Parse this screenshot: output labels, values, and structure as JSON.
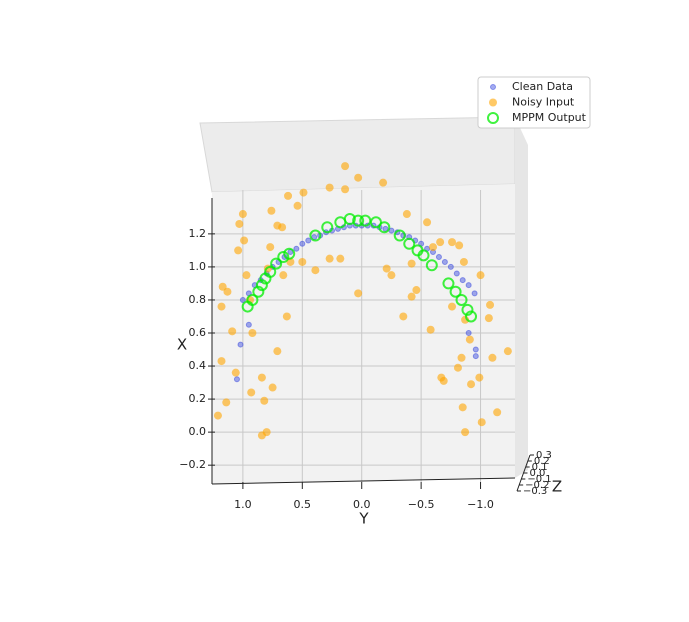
{
  "chart_data": {
    "type": "scatter",
    "xlabel": "Y",
    "ylabel": "X",
    "zlabel": "Z",
    "xlim": [
      1.26,
      -1.29
    ],
    "ylim": [
      -0.32,
      1.75
    ],
    "zlim": [
      -0.3,
      0.3
    ],
    "xticks": [
      {
        "value": 1,
        "label": "1.0"
      },
      0.5,
      {
        "value": 0,
        "label": "0.0"
      },
      {
        "value": -0.5,
        "label": "−0.5"
      },
      {
        "value": -1,
        "label": "−1.0"
      }
    ],
    "yticks": [
      {
        "value": -0.2,
        "label": "−0.2"
      },
      {
        "value": 0,
        "label": "0.0"
      },
      0.2,
      0.4,
      0.6,
      0.8,
      {
        "value": 1,
        "label": "1.0"
      },
      1.2
    ],
    "zticks": [
      {
        "value": -0.3,
        "label": "−0.3"
      },
      {
        "value": -0.2,
        "label": "−0.2"
      },
      {
        "value": -0.1,
        "label": "−0.1"
      },
      {
        "value": 0,
        "label": "0.0"
      },
      0.1,
      0.2,
      0.3
    ],
    "grid": true,
    "legend": "upper right",
    "series": [
      {
        "name": "Clean Data",
        "color": "#3344dd",
        "marker": "dot",
        "x": [
          1.0,
          0.95,
          0.9,
          0.85,
          0.8,
          0.75,
          0.7,
          0.65,
          0.6,
          0.55,
          0.5,
          0.45,
          0.4,
          0.35,
          0.3,
          0.25,
          0.2,
          0.15,
          0.1,
          0.05,
          0,
          -0.05,
          -0.1,
          -0.15,
          -0.2,
          -0.25,
          -0.3,
          -0.35,
          -0.4,
          -0.45,
          -0.5,
          -0.55,
          -0.6,
          -0.65,
          -0.7,
          -0.75,
          -0.8,
          -0.85,
          -0.9,
          -0.95,
          1.02,
          1.05,
          0.95,
          -0.96,
          -0.96,
          -0.9
        ],
        "y": [
          0.8,
          0.84,
          0.89,
          0.92,
          0.96,
          1.0,
          1.03,
          1.06,
          1.09,
          1.11,
          1.14,
          1.16,
          1.18,
          1.19,
          1.21,
          1.22,
          1.23,
          1.24,
          1.25,
          1.25,
          1.25,
          1.25,
          1.25,
          1.24,
          1.23,
          1.22,
          1.21,
          1.19,
          1.18,
          1.16,
          1.14,
          1.11,
          1.09,
          1.06,
          1.03,
          1.0,
          0.96,
          0.92,
          0.89,
          0.84,
          0.53,
          0.32,
          0.65,
          0.5,
          0.46,
          0.6
        ]
      },
      {
        "name": "Noisy Input",
        "color": "#ffa500",
        "marker": "circle",
        "x": [
          0.14,
          0.03,
          -0.18,
          0.27,
          0.14,
          0.62,
          0.49,
          0.54,
          1.0,
          0.76,
          -0.38,
          -0.55,
          1.03,
          0.71,
          0.67,
          0.77,
          0.99,
          1.04,
          0.5,
          0.39,
          0.27,
          0.18,
          0.79,
          0.66,
          0.6,
          -0.21,
          -0.25,
          -0.42,
          -0.6,
          -0.66,
          -0.76,
          -0.82,
          -0.86,
          -1.0,
          0.97,
          1.17,
          1.18,
          1.13,
          0.94,
          1.09,
          0.92,
          0.63,
          0.03,
          -0.42,
          -0.46,
          -0.35,
          -0.58,
          -0.76,
          -0.87,
          -1.08,
          -1.07,
          -0.91,
          -0.84,
          -1.1,
          -1.23,
          -0.99,
          -0.92,
          -0.67,
          -0.69,
          -0.81,
          0.71,
          1.18,
          1.06,
          0.84,
          0.75,
          0.93,
          0.82,
          1.14,
          1.21,
          -0.85,
          -1.14,
          -1.01,
          -0.87,
          0.8,
          0.84
        ],
        "y": [
          1.61,
          1.54,
          1.51,
          1.48,
          1.47,
          1.43,
          1.45,
          1.37,
          1.32,
          1.34,
          1.32,
          1.27,
          1.26,
          1.25,
          1.24,
          1.12,
          1.16,
          1.1,
          1.03,
          0.98,
          1.05,
          1.05,
          0.99,
          0.95,
          1.03,
          0.99,
          0.95,
          1.02,
          1.12,
          1.15,
          1.15,
          1.13,
          1.03,
          0.95,
          0.95,
          0.88,
          0.76,
          0.85,
          0.8,
          0.61,
          0.6,
          0.7,
          0.84,
          0.82,
          0.86,
          0.7,
          0.62,
          0.76,
          0.68,
          0.77,
          0.69,
          0.56,
          0.45,
          0.45,
          0.49,
          0.33,
          0.29,
          0.33,
          0.31,
          0.39,
          0.49,
          0.43,
          0.36,
          0.33,
          0.27,
          0.24,
          0.19,
          0.18,
          0.1,
          0.15,
          0.12,
          0.06,
          0,
          0,
          -0.02
        ]
      },
      {
        "name": "MPPM Output",
        "color": "#00ee00",
        "marker": "ring",
        "x": [
          0.96,
          0.92,
          0.87,
          0.84,
          0.81,
          0.77,
          0.72,
          0.66,
          0.61,
          0.39,
          0.29,
          0.18,
          0.1,
          0.03,
          -0.03,
          -0.12,
          -0.19,
          -0.32,
          -0.4,
          -0.47,
          -0.52,
          -0.59,
          -0.73,
          -0.79,
          -0.84,
          -0.89,
          -0.92
        ],
        "y": [
          0.76,
          0.8,
          0.85,
          0.89,
          0.93,
          0.97,
          1.02,
          1.06,
          1.08,
          1.19,
          1.24,
          1.27,
          1.29,
          1.28,
          1.28,
          1.27,
          1.24,
          1.19,
          1.14,
          1.1,
          1.07,
          1.01,
          0.9,
          0.85,
          0.8,
          0.74,
          0.7
        ]
      }
    ]
  }
}
